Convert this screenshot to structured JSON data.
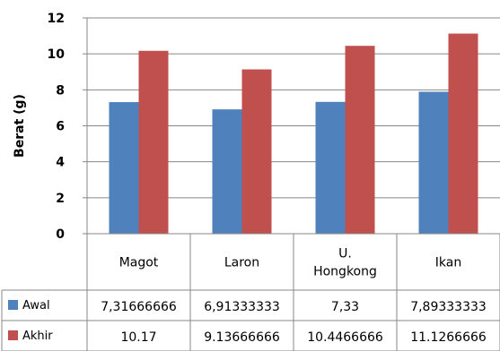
{
  "chart_data": {
    "type": "bar",
    "title": "",
    "xlabel": "",
    "ylabel": "Berat (g)",
    "ylim": [
      0,
      12
    ],
    "yticks": [
      0,
      2,
      4,
      6,
      8,
      10,
      12
    ],
    "grid": true,
    "legend": "table-left",
    "categories": [
      "Magot",
      "Laron",
      "U. Hongkong",
      "Ikan"
    ],
    "category_lines": [
      [
        "Magot"
      ],
      [
        "Laron"
      ],
      [
        "U.",
        "Hongkong"
      ],
      [
        "Ikan"
      ]
    ],
    "series": [
      {
        "name": "Awal",
        "color": "#4F81BD",
        "values": [
          7.31666666,
          6.91333333,
          7.33,
          7.89333333
        ],
        "value_labels": [
          "7,31666666",
          "6,91333333",
          "7,33",
          "7,89333333"
        ]
      },
      {
        "name": "Akhir",
        "color": "#C0504D",
        "values": [
          10.17,
          9.13666666,
          10.4466666,
          11.1266666
        ],
        "value_labels": [
          "10.17",
          "9.13666666",
          "10.4466666",
          "11.1266666"
        ]
      }
    ]
  }
}
